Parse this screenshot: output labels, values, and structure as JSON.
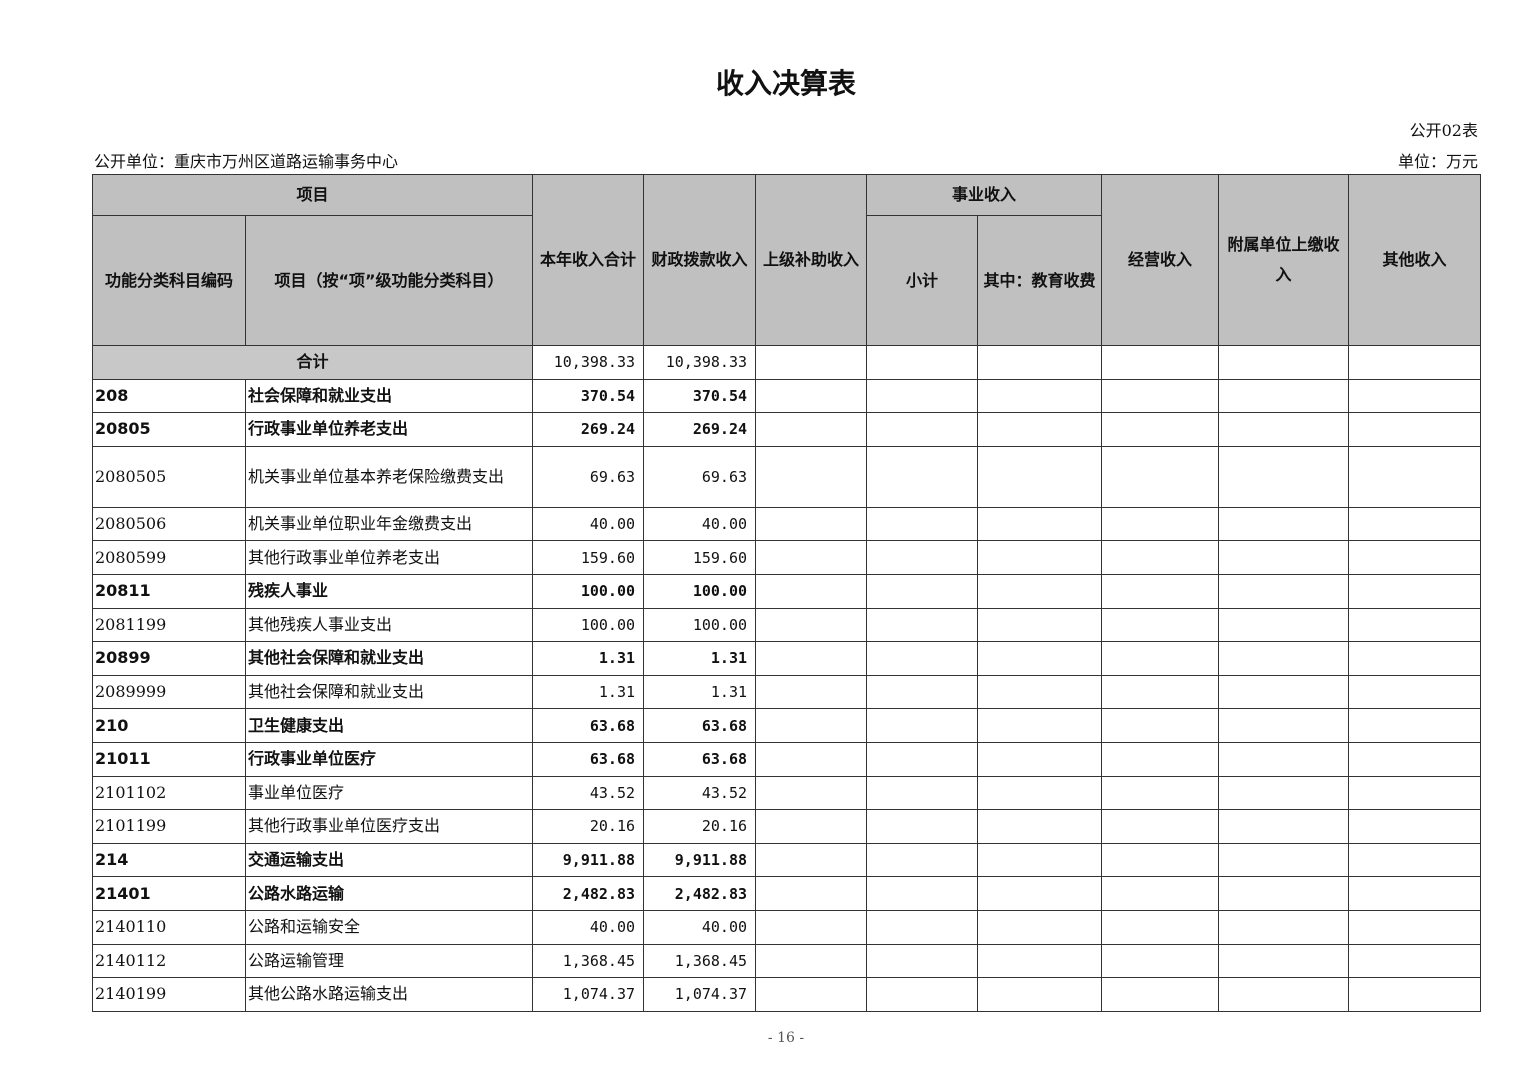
{
  "title": "收入决算表",
  "table_no": "公开02表",
  "org": "公开单位：重庆市万州区道路运输事务中心",
  "unit": "单位：万元",
  "headers": {
    "project": "项目",
    "code": "功能分类科目编码",
    "name": "项目（按“项”级功能分类科目）",
    "total": "本年收入合计",
    "fiscal": "财政拨款收入",
    "superior": "上级补助收入",
    "business": "事业收入",
    "subtotal": "小计",
    "education": "其中：教育收费",
    "operating": "经营收入",
    "affiliated": "附属单位上缴收入",
    "other": "其他收入"
  },
  "total_row": {
    "label": "合计",
    "total": "10,398.33",
    "fiscal": "10,398.33"
  },
  "rows": [
    {
      "code": "208",
      "name": "社会保障和就业支出",
      "total": "370.54",
      "fiscal": "370.54",
      "bold": true
    },
    {
      "code": "20805",
      "name": "行政事业单位养老支出",
      "total": "269.24",
      "fiscal": "269.24",
      "bold": true
    },
    {
      "code": "2080505",
      "name": "机关事业单位基本养老保险缴费支出",
      "total": "69.63",
      "fiscal": "69.63",
      "bold": false,
      "tall": true
    },
    {
      "code": "2080506",
      "name": "机关事业单位职业年金缴费支出",
      "total": "40.00",
      "fiscal": "40.00",
      "bold": false
    },
    {
      "code": "2080599",
      "name": "其他行政事业单位养老支出",
      "total": "159.60",
      "fiscal": "159.60",
      "bold": false
    },
    {
      "code": "20811",
      "name": "残疾人事业",
      "total": "100.00",
      "fiscal": "100.00",
      "bold": true
    },
    {
      "code": "2081199",
      "name": "其他残疾人事业支出",
      "total": "100.00",
      "fiscal": "100.00",
      "bold": false
    },
    {
      "code": "20899",
      "name": "其他社会保障和就业支出",
      "total": "1.31",
      "fiscal": "1.31",
      "bold": true
    },
    {
      "code": "2089999",
      "name": "其他社会保障和就业支出",
      "total": "1.31",
      "fiscal": "1.31",
      "bold": false
    },
    {
      "code": "210",
      "name": "卫生健康支出",
      "total": "63.68",
      "fiscal": "63.68",
      "bold": true
    },
    {
      "code": "21011",
      "name": "行政事业单位医疗",
      "total": "63.68",
      "fiscal": "63.68",
      "bold": true
    },
    {
      "code": "2101102",
      "name": "事业单位医疗",
      "total": "43.52",
      "fiscal": "43.52",
      "bold": false
    },
    {
      "code": "2101199",
      "name": "其他行政事业单位医疗支出",
      "total": "20.16",
      "fiscal": "20.16",
      "bold": false
    },
    {
      "code": "214",
      "name": "交通运输支出",
      "total": "9,911.88",
      "fiscal": "9,911.88",
      "bold": true
    },
    {
      "code": "21401",
      "name": "公路水路运输",
      "total": "2,482.83",
      "fiscal": "2,482.83",
      "bold": true
    },
    {
      "code": "2140110",
      "name": "公路和运输安全",
      "total": "40.00",
      "fiscal": "40.00",
      "bold": false
    },
    {
      "code": "2140112",
      "name": "公路运输管理",
      "total": "1,368.45",
      "fiscal": "1,368.45",
      "bold": false
    },
    {
      "code": "2140199",
      "name": "其他公路水路运输支出",
      "total": "1,074.37",
      "fiscal": "1,074.37",
      "bold": false
    }
  ],
  "page_number": "- 16 -"
}
